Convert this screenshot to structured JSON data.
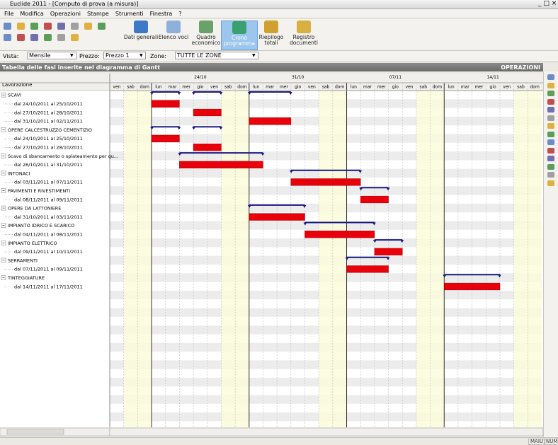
{
  "window": {
    "title": "Euclide 2011 - [Computo di prova (a misura)]"
  },
  "menu": [
    "File",
    "Modifica",
    "Operazioni",
    "Stampe",
    "Strumenti",
    "Finestra",
    "?"
  ],
  "toolbar": [
    "Dati generali",
    "Elenco voci",
    "Quadro economico",
    "Crono programma",
    "Riepilogo totali",
    "Registro documenti"
  ],
  "filters": [
    {
      "label": "Vista:",
      "value": "Mensile"
    },
    {
      "label": "Prezzo:",
      "value": "Prezzo 1"
    },
    {
      "label": "Zone:",
      "value": "TUTTE LE ZONE"
    }
  ],
  "panel": {
    "title": "Tabella delle fasi inserite nel diagramma di Gantt",
    "operations": "OPERAZIONI"
  },
  "gantt": {
    "column_header": "Lavorazione",
    "days": [
      "ven",
      "sab",
      "dom",
      "lun",
      "mar",
      "mer",
      "gio",
      "ven",
      "sab",
      "dom",
      "lun",
      "mar",
      "mer",
      "gio",
      "ven",
      "sab",
      "dom",
      "lun",
      "mar",
      "mer",
      "gio",
      "ven",
      "sab",
      "dom",
      "lun",
      "mar",
      "mer",
      "gio",
      "ven",
      "sab",
      "dom"
    ],
    "weeks": [
      "24/10",
      "31/10",
      "07/11",
      "14/11"
    ],
    "groups": [
      {
        "name": "SCAVI",
        "tasks": [
          "dal 24/10/2011 al 25/10/2011",
          "dal 27/10/2011 al 28/10/2011",
          "dal 31/10/2011 al 02/11/2011"
        ]
      },
      {
        "name": "OPERE CALCESTRUZZO CEMENTIZIO",
        "tasks": [
          "dal 24/10/2011 al 25/10/2011",
          "dal 27/10/2011 al 28/10/2011"
        ]
      },
      {
        "name": "Scavo di sbancamento o splateamento per qu...",
        "tasks": [
          "dal 26/10/2011 al 31/10/2011"
        ]
      },
      {
        "name": "INTONACI",
        "tasks": [
          "dal 03/11/2011 al 07/11/2011"
        ]
      },
      {
        "name": "PAVIMENTI E RIVESTIMENTI",
        "tasks": [
          "dal 08/11/2011 al 09/11/2011"
        ]
      },
      {
        "name": "OPERE DA LATTONIERE",
        "tasks": [
          "dal 31/10/2011 al 03/11/2011"
        ]
      },
      {
        "name": "IMPIANTO IDRICO E SCARICO",
        "tasks": [
          "dal 04/11/2011 al 08/11/2011"
        ]
      },
      {
        "name": "IMPIANTO ELETTRICO",
        "tasks": [
          "dal 09/11/2011 al 10/11/2011"
        ]
      },
      {
        "name": "SERRAMENTI",
        "tasks": [
          "dal 07/11/2011 al 09/11/2011"
        ]
      },
      {
        "name": "TINTEGGIATURE",
        "tasks": [
          "dal 14/11/2011 al 17/11/2011"
        ]
      }
    ]
  },
  "status": [
    "MAIU",
    "NUM"
  ]
}
